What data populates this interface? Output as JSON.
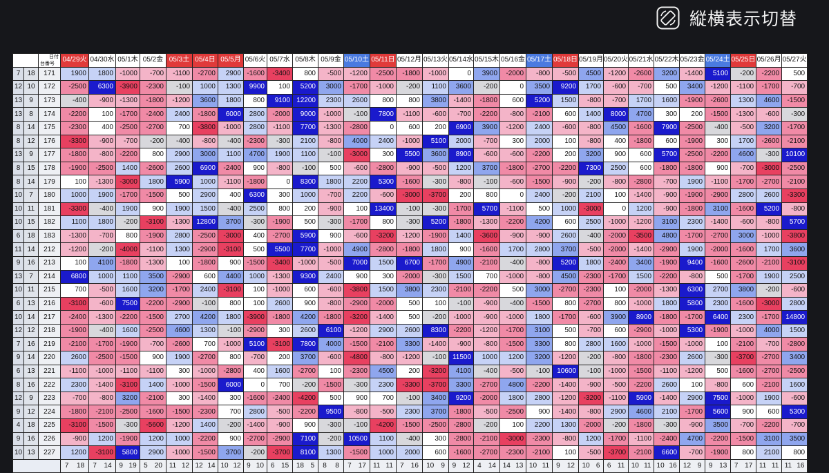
{
  "toolbar": {
    "toggle_label": "縦横表示切替",
    "toggle_icon": "rotate-screen-icon"
  },
  "header": {
    "corner_top": "日付",
    "corner_bottom": "台番号",
    "dates": [
      {
        "label": "04/29火",
        "type": "sun"
      },
      {
        "label": "04/30水",
        "type": "weekday"
      },
      {
        "label": "05/1木",
        "type": "weekday"
      },
      {
        "label": "05/2金",
        "type": "weekday"
      },
      {
        "label": "05/3土",
        "type": "sun"
      },
      {
        "label": "05/4日",
        "type": "sun"
      },
      {
        "label": "05/5月",
        "type": "sun"
      },
      {
        "label": "05/6火",
        "type": "weekday"
      },
      {
        "label": "05/7水",
        "type": "weekday"
      },
      {
        "label": "05/8木",
        "type": "weekday"
      },
      {
        "label": "05/9金",
        "type": "weekday"
      },
      {
        "label": "05/10土",
        "type": "sat"
      },
      {
        "label": "05/11日",
        "type": "sun"
      },
      {
        "label": "05/12月",
        "type": "weekday"
      },
      {
        "label": "05/13火",
        "type": "weekday"
      },
      {
        "label": "05/14水",
        "type": "weekday"
      },
      {
        "label": "05/15木",
        "type": "weekday"
      },
      {
        "label": "05/16金",
        "type": "weekday"
      },
      {
        "label": "05/17土",
        "type": "sat"
      },
      {
        "label": "05/18日",
        "type": "sun"
      },
      {
        "label": "05/19月",
        "type": "weekday"
      },
      {
        "label": "05/20火",
        "type": "weekday"
      },
      {
        "label": "05/21水",
        "type": "weekday"
      },
      {
        "label": "05/22木",
        "type": "weekday"
      },
      {
        "label": "05/23金",
        "type": "weekday"
      },
      {
        "label": "05/24土",
        "type": "sat"
      },
      {
        "label": "05/25日",
        "type": "sun"
      },
      {
        "label": "05/26月",
        "type": "weekday"
      },
      {
        "label": "05/27火",
        "type": "weekday"
      }
    ]
  },
  "rows": [
    {
      "a": "7",
      "b": "18",
      "id": "171",
      "values": [
        1900,
        1800,
        -1000,
        -700,
        -1100,
        -2700,
        2900,
        -1600,
        -3400,
        800,
        -500,
        -1200,
        -2500,
        -1800,
        -1000,
        0,
        3900,
        -2000,
        -800,
        -500,
        4500,
        -1200,
        -2600,
        3200,
        -1400,
        5100,
        -200,
        -2200,
        500
      ]
    },
    {
      "a": "12",
      "b": "10",
      "id": "172",
      "values": [
        -2500,
        6300,
        -3900,
        -2300,
        -100,
        1000,
        1300,
        9900,
        100,
        5200,
        3000,
        -1700,
        -1000,
        -200,
        1100,
        3600,
        -200,
        0,
        3500,
        9200,
        1700,
        -600,
        -700,
        500,
        3400,
        -1200,
        -1100,
        -1700,
        -700
      ]
    },
    {
      "a": "13",
      "b": "9",
      "id": "173",
      "values": [
        -400,
        -900,
        -1300,
        -1800,
        -1200,
        3600,
        1800,
        800,
        9100,
        12200,
        2300,
        2600,
        800,
        800,
        3800,
        -1400,
        -1800,
        600,
        5200,
        1500,
        -800,
        -700,
        1700,
        1600,
        -1900,
        -2600,
        1300,
        4600,
        -1500
      ]
    },
    {
      "a": "13",
      "b": "8",
      "id": "174",
      "values": [
        -2200,
        100,
        -1700,
        -2400,
        2400,
        -1800,
        6000,
        2800,
        -2000,
        9000,
        -1000,
        -100,
        7800,
        -1100,
        -600,
        -700,
        -2200,
        -800,
        -2100,
        600,
        1400,
        8000,
        4700,
        300,
        200,
        -1500,
        -1300,
        -600,
        -300
      ]
    },
    {
      "a": "8",
      "b": "14",
      "id": "175",
      "values": [
        -2300,
        400,
        -2500,
        -2700,
        700,
        -3800,
        -1000,
        2800,
        -1100,
        7700,
        -1300,
        -2800,
        0,
        600,
        200,
        6900,
        3900,
        -1200,
        2400,
        -600,
        -800,
        4500,
        -1600,
        7900,
        -2500,
        -400,
        -500,
        3200,
        -1700
      ]
    },
    {
      "a": "8",
      "b": "12",
      "id": "176",
      "values": [
        -3300,
        -900,
        -700,
        -200,
        -400,
        -800,
        -400,
        -2300,
        -300,
        2100,
        -800,
        4000,
        2400,
        -1000,
        5100,
        2000,
        -700,
        300,
        2000,
        100,
        -800,
        400,
        -1800,
        600,
        -1900,
        300,
        1700,
        -2600,
        -2100
      ]
    },
    {
      "a": "13",
      "b": "9",
      "id": "177",
      "values": [
        -1800,
        -800,
        -2200,
        800,
        2900,
        3000,
        1100,
        4700,
        1900,
        1100,
        -100,
        -3000,
        300,
        5500,
        3600,
        8900,
        -600,
        -600,
        -2200,
        200,
        3200,
        900,
        600,
        5700,
        -2500,
        -2200,
        4600,
        -300,
        10100
      ]
    },
    {
      "a": "8",
      "b": "15",
      "id": "178",
      "values": [
        -1900,
        -2500,
        1400,
        -2600,
        2600,
        6900,
        -2400,
        900,
        -800,
        -100,
        500,
        -600,
        -2800,
        -900,
        -500,
        1200,
        3700,
        -1800,
        -2700,
        -2200,
        7300,
        2500,
        600,
        -1800,
        -1800,
        900,
        -700,
        -3000,
        -2500
      ]
    },
    {
      "a": "8",
      "b": "14",
      "id": "179",
      "values": [
        100,
        -1300,
        -3000,
        1800,
        5900,
        1000,
        -1100,
        -1800,
        0,
        8300,
        1800,
        2200,
        5300,
        -1600,
        -300,
        -800,
        -100,
        -600,
        -1500,
        -900,
        -200,
        -800,
        -2800,
        -700,
        1900,
        -1100,
        -1700,
        -2700,
        -2100
      ]
    },
    {
      "a": "10",
      "b": "7",
      "id": "180",
      "values": [
        1000,
        1900,
        -1700,
        -1500,
        500,
        2900,
        400,
        6300,
        300,
        1000,
        -700,
        2200,
        -600,
        -3000,
        -3700,
        200,
        800,
        0,
        2400,
        -200,
        2100,
        100,
        -1400,
        -900,
        -1900,
        -2900,
        2800,
        2600,
        -3300
      ]
    },
    {
      "a": "10",
      "b": "11",
      "id": "181",
      "values": [
        -3300,
        -400,
        1900,
        900,
        1900,
        1500,
        -400,
        2500,
        800,
        200,
        -900,
        100,
        13400,
        -100,
        -300,
        -1700,
        5700,
        -1100,
        500,
        1000,
        -3000,
        0,
        1200,
        -900,
        -1800,
        3100,
        -1600,
        5200,
        -800
      ]
    },
    {
      "a": "10",
      "b": "15",
      "id": "182",
      "values": [
        1100,
        1800,
        -200,
        -3100,
        -1300,
        12800,
        3700,
        -300,
        -1900,
        500,
        -300,
        -1700,
        800,
        -300,
        5200,
        -1800,
        -1300,
        -2200,
        4200,
        600,
        2500,
        -1000,
        -1200,
        3100,
        2300,
        -1400,
        -600,
        -800,
        5700
      ]
    },
    {
      "a": "6",
      "b": "18",
      "id": "183",
      "values": [
        -1300,
        -700,
        800,
        -1900,
        2800,
        -2500,
        -3000,
        400,
        -2700,
        5900,
        900,
        -600,
        -3200,
        -1200,
        -1900,
        1400,
        -3600,
        -900,
        -900,
        2600,
        -400,
        -2000,
        -3500,
        4800,
        -1700,
        -2700,
        3000,
        -1000,
        -3800
      ]
    },
    {
      "a": "11",
      "b": "14",
      "id": "212",
      "values": [
        -1200,
        -200,
        -4000,
        -1100,
        1300,
        -2900,
        -3100,
        500,
        5500,
        7700,
        -1000,
        4900,
        -2800,
        -1800,
        1800,
        900,
        -1600,
        1700,
        2800,
        3700,
        -500,
        -2000,
        -1400,
        -2900,
        1900,
        -2000,
        -1600,
        1700,
        3600
      ]
    },
    {
      "a": "9",
      "b": "16",
      "id": "213",
      "values": [
        100,
        4100,
        -1800,
        -1300,
        100,
        -1800,
        900,
        -1500,
        -3400,
        -1000,
        -500,
        7000,
        1500,
        6700,
        -1700,
        4900,
        -2100,
        -400,
        -800,
        5200,
        1800,
        -2400,
        3400,
        -1900,
        9400,
        -1600,
        -2600,
        -2100,
        -3100
      ]
    },
    {
      "a": "13",
      "b": "7",
      "id": "214",
      "values": [
        6800,
        1000,
        1100,
        3500,
        -2900,
        600,
        4400,
        1000,
        -1300,
        9300,
        2400,
        900,
        300,
        -2000,
        -300,
        1500,
        700,
        -1000,
        -800,
        4500,
        -2300,
        -1700,
        1500,
        -2200,
        -800,
        500,
        -1700,
        1900,
        2500
      ]
    },
    {
      "a": "10",
      "b": "11",
      "id": "215",
      "values": [
        700,
        -500,
        1600,
        3200,
        -1700,
        2400,
        -3100,
        100,
        -1000,
        600,
        -600,
        -3800,
        1500,
        3800,
        2300,
        -2100,
        -2200,
        500,
        3000,
        -2700,
        -2300,
        100,
        -2000,
        -1300,
        6300,
        2700,
        3800,
        -200,
        -600
      ]
    },
    {
      "a": "6",
      "b": "13",
      "id": "216",
      "values": [
        -3100,
        -600,
        7500,
        -2200,
        -2900,
        -100,
        800,
        100,
        2600,
        900,
        -800,
        -2900,
        -2000,
        500,
        100,
        -100,
        -900,
        -400,
        -1500,
        800,
        -2700,
        800,
        -1000,
        1800,
        5800,
        2300,
        -1600,
        -3000,
        2800
      ]
    },
    {
      "a": "10",
      "b": "14",
      "id": "217",
      "values": [
        -2400,
        -1300,
        -2200,
        -1500,
        2700,
        4200,
        1800,
        -3900,
        -1800,
        4200,
        -1800,
        -3200,
        -1400,
        500,
        -200,
        -1000,
        -900,
        -1000,
        1800,
        -1700,
        -600,
        3900,
        8900,
        -1800,
        -1700,
        6400,
        2300,
        -1700,
        14800
      ]
    },
    {
      "a": "12",
      "b": "12",
      "id": "218",
      "values": [
        -1900,
        -400,
        1600,
        -2500,
        4600,
        1300,
        -100,
        -2900,
        300,
        2600,
        6100,
        -1200,
        2900,
        2600,
        8300,
        -2200,
        -1200,
        -1700,
        3100,
        500,
        -700,
        600,
        -2900,
        -1000,
        5300,
        -1900,
        -1000,
        4000,
        1500
      ]
    },
    {
      "a": "7",
      "b": "16",
      "id": "219",
      "values": [
        -2100,
        -1700,
        -1900,
        -700,
        -2600,
        700,
        -1000,
        5100,
        -3100,
        7800,
        4000,
        -1500,
        -2100,
        3300,
        -1400,
        -900,
        -800,
        -1500,
        3300,
        800,
        2800,
        1600,
        -1000,
        -1500,
        -1000,
        100,
        -2100,
        -700,
        -2800
      ]
    },
    {
      "a": "9",
      "b": "14",
      "id": "220",
      "values": [
        2600,
        -2500,
        -1500,
        900,
        1900,
        -2700,
        800,
        -700,
        200,
        3700,
        -600,
        -4800,
        -800,
        -1200,
        -100,
        11500,
        1000,
        1200,
        3200,
        -1200,
        -200,
        -800,
        -1800,
        -2300,
        2600,
        -300,
        -3700,
        -2700,
        3400
      ]
    },
    {
      "a": "6",
      "b": "13",
      "id": "221",
      "values": [
        -1100,
        -1000,
        -1100,
        -1100,
        300,
        -1000,
        -2800,
        400,
        1600,
        -2700,
        100,
        -2300,
        4500,
        200,
        -3200,
        4100,
        -400,
        -500,
        -100,
        10600,
        -100,
        -1000,
        -1500,
        -1100,
        -1200,
        500,
        -1600,
        -2700,
        -2500
      ]
    },
    {
      "a": "8",
      "b": "16",
      "id": "222",
      "values": [
        2300,
        -1400,
        -3100,
        1400,
        -1000,
        -1500,
        6000,
        0,
        700,
        -200,
        -1500,
        -300,
        2300,
        -3300,
        -3700,
        3300,
        -2700,
        4800,
        -2200,
        -1400,
        -900,
        -500,
        -2200,
        2600,
        100,
        -800,
        600,
        -2100,
        1600
      ]
    },
    {
      "a": "12",
      "b": "9",
      "id": "223",
      "values": [
        -700,
        -800,
        3200,
        -2100,
        300,
        -1400,
        300,
        -1600,
        -2400,
        -4200,
        500,
        900,
        700,
        -100,
        3400,
        9200,
        -2000,
        1800,
        2800,
        -1200,
        -3200,
        -1100,
        5900,
        -1400,
        2900,
        7500,
        -1000,
        1900,
        -600
      ]
    },
    {
      "a": "9",
      "b": "12",
      "id": "224",
      "values": [
        -1800,
        -2100,
        -2500,
        -1600,
        -1500,
        -2300,
        700,
        2800,
        -500,
        -2200,
        9500,
        -800,
        -500,
        2300,
        3700,
        -1800,
        -500,
        -2500,
        900,
        -1400,
        -800,
        2900,
        4600,
        2100,
        -1700,
        5600,
        900,
        600,
        5300
      ]
    },
    {
      "a": "4",
      "b": "18",
      "id": "225",
      "values": [
        -3100,
        -1500,
        -300,
        -5600,
        -1200,
        1400,
        -200,
        -1400,
        -900,
        900,
        -300,
        -100,
        -4200,
        -1500,
        -2500,
        -2800,
        -200,
        100,
        2200,
        1300,
        -2000,
        -200,
        -1800,
        -300,
        -900,
        3500,
        -700,
        -2200,
        -700
      ]
    },
    {
      "a": "9",
      "b": "16",
      "id": "226",
      "values": [
        -900,
        1200,
        -1900,
        1200,
        1000,
        -2200,
        900,
        -2700,
        -2900,
        7100,
        -200,
        10500,
        1100,
        -400,
        300,
        -2800,
        -2100,
        -3000,
        -2300,
        -800,
        1200,
        -1700,
        -1100,
        -2400,
        4700,
        -2200,
        -1500,
        3100,
        3500
      ]
    },
    {
      "a": "10",
      "b": "13",
      "id": "227",
      "values": [
        1200,
        -3100,
        5800,
        2900,
        -1000,
        -1500,
        3700,
        -200,
        -3700,
        8100,
        1300,
        -1500,
        1000,
        2000,
        600,
        -1600,
        -2700,
        -2300,
        -2100,
        100,
        -500,
        -3700,
        -2100,
        6600,
        -700,
        -1900,
        800,
        2100,
        800
      ]
    }
  ],
  "footer": [
    [
      "7",
      "18"
    ],
    [
      "7",
      "14"
    ],
    [
      "9",
      "19"
    ],
    [
      "5",
      "20"
    ],
    [
      "11",
      "12"
    ],
    [
      "12",
      "14"
    ],
    [
      "10",
      "12"
    ],
    [
      "9",
      "10"
    ],
    [
      "6",
      "15"
    ],
    [
      "18",
      "5"
    ],
    [
      "8",
      "8"
    ],
    [
      "7",
      "17"
    ],
    [
      "11",
      "11"
    ],
    [
      "7",
      "16"
    ],
    [
      "10",
      "9"
    ],
    [
      "9",
      "12"
    ],
    [
      "4",
      "14"
    ],
    [
      "14",
      "13"
    ],
    [
      "10",
      "11"
    ],
    [
      "9",
      "12"
    ],
    [
      "10",
      "6"
    ],
    [
      "6",
      "11"
    ],
    [
      "10",
      "11"
    ],
    [
      "10",
      "16"
    ],
    [
      "12",
      "9"
    ],
    [
      "9",
      "13"
    ],
    [
      "7",
      "17"
    ],
    [
      "11",
      "11"
    ],
    [
      "11",
      "16"
    ]
  ]
}
